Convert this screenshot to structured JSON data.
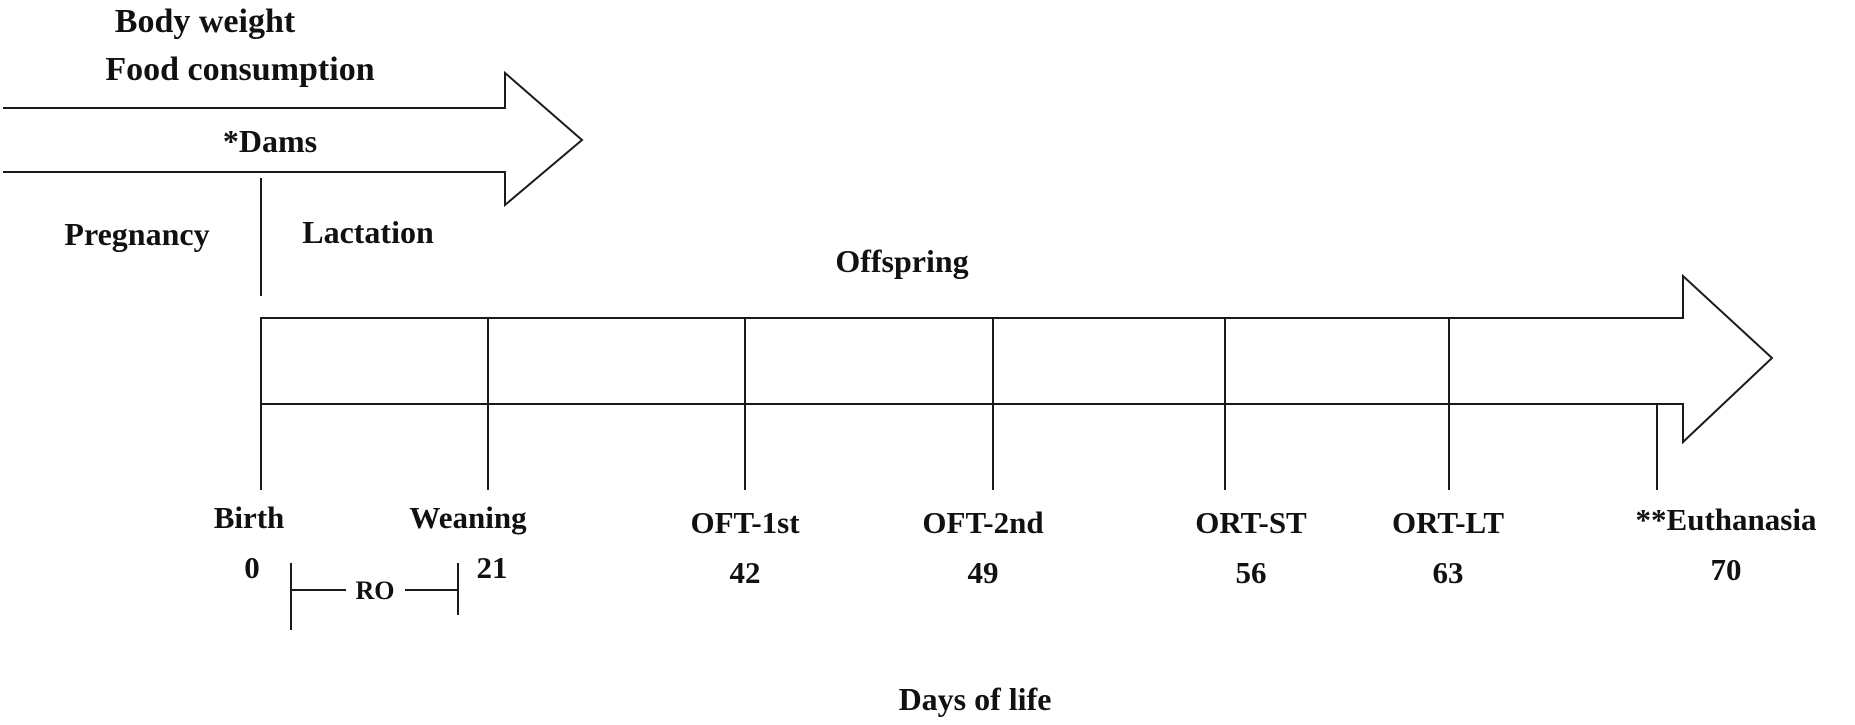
{
  "dams": {
    "measures": [
      "Body weight",
      "Food consumption"
    ],
    "arrow_label": "*Dams",
    "phases": [
      "Pregnancy",
      "Lactation"
    ]
  },
  "offspring": {
    "label": "Offspring",
    "events": [
      {
        "label": "Birth",
        "day": "0"
      },
      {
        "label": "Weaning",
        "day": "21"
      },
      {
        "label": "OFT-1st",
        "day": "42"
      },
      {
        "label": "OFT-2nd",
        "day": "49"
      },
      {
        "label": "ORT-ST",
        "day": "56"
      },
      {
        "label": "ORT-LT",
        "day": "63"
      },
      {
        "label": "**Euthanasia",
        "day": "70"
      }
    ],
    "ro_label": "RO"
  },
  "axis_label": "Days of life"
}
